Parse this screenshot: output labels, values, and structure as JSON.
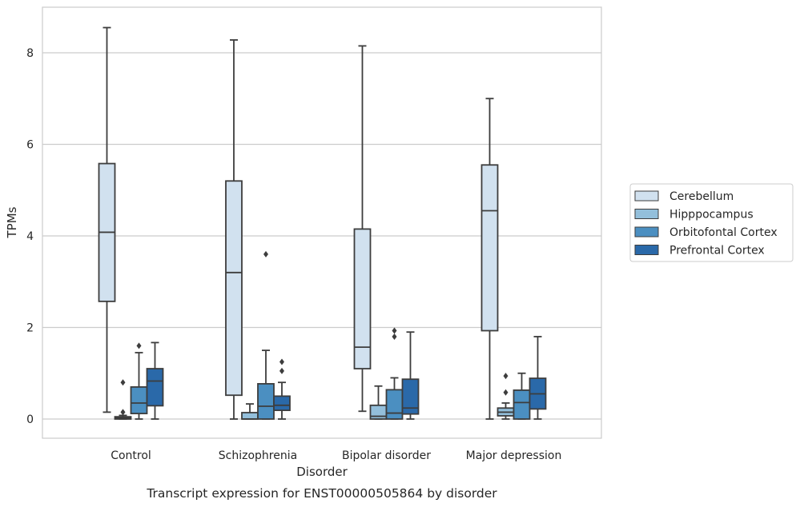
{
  "chart_data": {
    "type": "box",
    "xlabel": "Disorder",
    "ylabel": "TPMs",
    "caption": "Transcript expression for ENST00000505864 by disorder",
    "ylim": [
      -0.42,
      9.0
    ],
    "yticks": [
      0,
      2,
      4,
      6,
      8
    ],
    "grid": "horizontal",
    "legend_position": "right",
    "categories": [
      "Control",
      "Schizophrenia",
      "Bipolar disorder",
      "Major depression"
    ],
    "series": [
      {
        "name": "Cerebellum",
        "color": "#d1e1ef",
        "boxes": [
          {
            "whisker_low": 0.15,
            "q1": 2.57,
            "median": 4.08,
            "q3": 5.58,
            "whisker_high": 8.55,
            "outliers": []
          },
          {
            "whisker_low": 0.0,
            "q1": 0.52,
            "median": 3.2,
            "q3": 5.2,
            "whisker_high": 8.28,
            "outliers": []
          },
          {
            "whisker_low": 0.17,
            "q1": 1.1,
            "median": 1.57,
            "q3": 4.15,
            "whisker_high": 8.15,
            "outliers": []
          },
          {
            "whisker_low": 0.0,
            "q1": 1.93,
            "median": 4.55,
            "q3": 5.55,
            "whisker_high": 7.0,
            "outliers": []
          }
        ]
      },
      {
        "name": "Hipppocampus",
        "color": "#93bfdb",
        "boxes": [
          {
            "whisker_low": 0.0,
            "q1": 0.0,
            "median": 0.02,
            "q3": 0.05,
            "whisker_high": 0.08,
            "outliers": [
              0.15,
              0.8
            ]
          },
          {
            "whisker_low": 0.0,
            "q1": 0.0,
            "median": 0.0,
            "q3": 0.14,
            "whisker_high": 0.33,
            "outliers": []
          },
          {
            "whisker_low": 0.0,
            "q1": 0.0,
            "median": 0.06,
            "q3": 0.3,
            "whisker_high": 0.72,
            "outliers": []
          },
          {
            "whisker_low": 0.0,
            "q1": 0.07,
            "median": 0.15,
            "q3": 0.24,
            "whisker_high": 0.35,
            "outliers": [
              0.58,
              0.94
            ]
          }
        ]
      },
      {
        "name": "Orbitofontal Cortex",
        "color": "#4b8fc1",
        "boxes": [
          {
            "whisker_low": 0.0,
            "q1": 0.12,
            "median": 0.35,
            "q3": 0.7,
            "whisker_high": 1.45,
            "outliers": [
              1.6
            ]
          },
          {
            "whisker_low": 0.0,
            "q1": 0.0,
            "median": 0.28,
            "q3": 0.77,
            "whisker_high": 1.5,
            "outliers": [
              3.6
            ]
          },
          {
            "whisker_low": 0.0,
            "q1": 0.0,
            "median": 0.13,
            "q3": 0.64,
            "whisker_high": 0.9,
            "outliers": [
              1.8,
              1.93
            ]
          },
          {
            "whisker_low": 0.0,
            "q1": 0.0,
            "median": 0.36,
            "q3": 0.63,
            "whisker_high": 1.0,
            "outliers": []
          }
        ]
      },
      {
        "name": "Prefrontal Cortex",
        "color": "#2a69a9",
        "boxes": [
          {
            "whisker_low": 0.0,
            "q1": 0.29,
            "median": 0.83,
            "q3": 1.1,
            "whisker_high": 1.67,
            "outliers": []
          },
          {
            "whisker_low": 0.0,
            "q1": 0.19,
            "median": 0.3,
            "q3": 0.5,
            "whisker_high": 0.8,
            "outliers": [
              1.05,
              1.25
            ]
          },
          {
            "whisker_low": 0.0,
            "q1": 0.11,
            "median": 0.24,
            "q3": 0.87,
            "whisker_high": 1.9,
            "outliers": []
          },
          {
            "whisker_low": 0.0,
            "q1": 0.22,
            "median": 0.55,
            "q3": 0.89,
            "whisker_high": 1.8,
            "outliers": []
          }
        ]
      }
    ]
  }
}
